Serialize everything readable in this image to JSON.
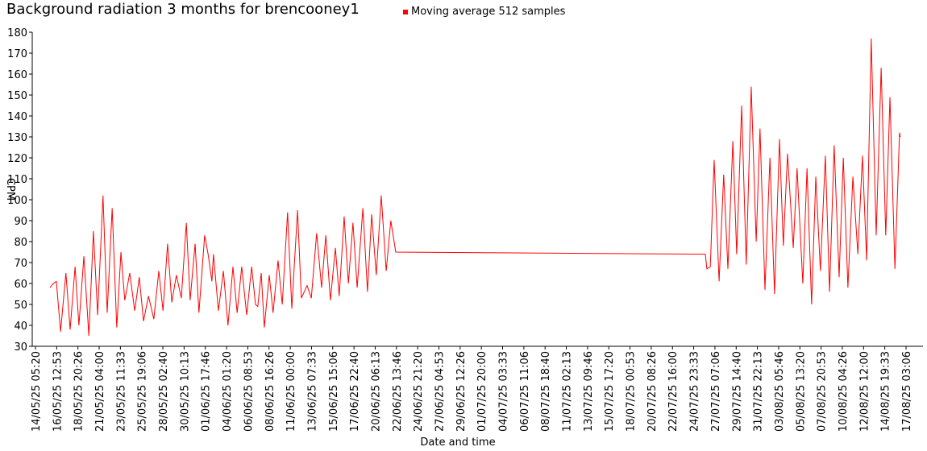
{
  "chart_data": {
    "type": "line",
    "title": "Background radiation 3 months for brencooney1",
    "x_label": "Date and time",
    "y_label": "CPM",
    "legend": "top",
    "x": [
      "15/05/25 19:00",
      "16/05/25 04:00",
      "16/05/25 12:00",
      "16/05/25 23:00",
      "17/05/25 13:00",
      "18/05/25 00:00",
      "18/05/25 13:00",
      "18/05/25 23:00",
      "19/05/25 12:00",
      "20/05/25 01:00",
      "20/05/25 13:00",
      "21/05/25 00:00",
      "21/05/25 14:00",
      "22/05/25 01:00",
      "22/05/25 14:00",
      "23/05/25 02:00",
      "23/05/25 13:00",
      "23/05/25 23:00",
      "24/05/25 12:00",
      "25/05/25 01:00",
      "25/05/25 13:00",
      "26/05/25 00:00",
      "26/05/25 13:00",
      "27/05/25 03:00",
      "27/05/25 16:00",
      "28/05/25 03:00",
      "28/05/25 15:00",
      "29/05/25 02:00",
      "29/05/25 14:00",
      "30/05/25 03:00",
      "30/05/25 16:00",
      "31/05/25 02:00",
      "31/05/25 15:00",
      "01/06/25 01:00",
      "01/06/25 16:00",
      "02/06/25 01:00",
      "02/06/25 11:00",
      "02/06/25 15:00",
      "03/06/25 04:00",
      "03/06/25 17:00",
      "04/06/25 05:00",
      "04/06/25 18:00",
      "05/06/25 05:00",
      "05/06/25 17:00",
      "06/06/25 06:00",
      "06/06/25 19:00",
      "07/06/25 05:00",
      "07/06/25 11:00",
      "07/06/25 20:00",
      "08/06/25 04:00",
      "08/06/25 17:00",
      "09/06/25 03:00",
      "09/06/25 16:00",
      "10/06/25 03:00",
      "10/06/25 17:00",
      "11/06/25 04:00",
      "11/06/25 19:00",
      "12/06/25 05:00",
      "12/06/25 20:00",
      "13/06/25 07:00",
      "13/06/25 21:00",
      "14/06/25 10:00",
      "14/06/25 21:00",
      "15/06/25 09:00",
      "15/06/25 22:00",
      "16/06/25 08:00",
      "16/06/25 21:00",
      "17/06/25 08:00",
      "17/06/25 20:00",
      "18/06/25 07:00",
      "18/06/25 22:00",
      "19/06/25 10:00",
      "19/06/25 21:00",
      "20/06/25 09:00",
      "20/06/25 22:00",
      "21/06/25 11:00",
      "21/06/25 23:00",
      "22/06/25 12:00",
      "26/07/25 06:00",
      "26/07/25 10:00",
      "26/07/25 19:00",
      "27/07/25 05:00",
      "27/07/25 18:00",
      "28/07/25 06:00",
      "28/07/25 17:00",
      "29/07/25 06:00",
      "29/07/25 16:00",
      "30/07/25 05:00",
      "30/07/25 17:00",
      "31/07/25 06:00",
      "31/07/25 19:00",
      "01/08/25 05:00",
      "01/08/25 18:00",
      "02/08/25 07:00",
      "02/08/25 19:00",
      "03/08/25 08:00",
      "03/08/25 18:00",
      "04/08/25 05:00",
      "04/08/25 20:00",
      "05/08/25 06:00",
      "05/08/25 21:00",
      "06/08/25 08:00",
      "06/08/25 20:00",
      "07/08/25 07:00",
      "07/08/25 19:00",
      "08/08/25 08:00",
      "08/08/25 19:00",
      "09/08/25 07:00",
      "09/08/25 20:00",
      "10/08/25 07:00",
      "10/08/25 19:00",
      "11/08/25 08:00",
      "11/08/25 21:00",
      "12/08/25 09:00",
      "12/08/25 20:00",
      "13/08/25 08:00",
      "13/08/25 21:00",
      "14/08/25 10:00",
      "14/08/25 22:00",
      "15/08/25 09:00",
      "15/08/25 22:00",
      "16/08/25 06:00",
      "16/08/25 10:00",
      "16/08/25 12:00"
    ],
    "series": [
      {
        "name": "Moving average 512 samples",
        "color": "#ff0000",
        "values": [
          58,
          60,
          61,
          37,
          65,
          38,
          68,
          40,
          73,
          35,
          85,
          45,
          102,
          46,
          96,
          39,
          75,
          52,
          65,
          47,
          63,
          42,
          54,
          43,
          66,
          47,
          79,
          51,
          64,
          53,
          89,
          52,
          79,
          46,
          83,
          74,
          61,
          74,
          47,
          66,
          40,
          68,
          46,
          68,
          45,
          68,
          50,
          49,
          65,
          39,
          64,
          46,
          71,
          50,
          94,
          48,
          95,
          53,
          59,
          53,
          84,
          58,
          83,
          52,
          77,
          54,
          92,
          60,
          89,
          58,
          96,
          56,
          93,
          64,
          102,
          66,
          90,
          75,
          74,
          67,
          68,
          119,
          61,
          112,
          67,
          128,
          74,
          145,
          69,
          154,
          80,
          134,
          57,
          120,
          55,
          129,
          78,
          122,
          77,
          115,
          60,
          115,
          50,
          111,
          66,
          121,
          56,
          126,
          63,
          120,
          58,
          111,
          74,
          121,
          71,
          177,
          83,
          163,
          83,
          149,
          67,
          110,
          132,
          130
        ]
      }
    ],
    "xlim": [
      "14/05/25 05:20",
      "17/08/25 03:06"
    ],
    "xticks": [
      "14/05/25 05:20",
      "16/05/25 12:53",
      "18/05/25 20:26",
      "21/05/25 04:00",
      "23/05/25 11:33",
      "25/05/25 19:06",
      "28/05/25 02:40",
      "30/05/25 10:13",
      "01/06/25 17:46",
      "04/06/25 01:20",
      "06/06/25 08:53",
      "08/06/25 16:26",
      "11/06/25 00:00",
      "13/06/25 07:33",
      "15/06/25 15:06",
      "17/06/25 22:40",
      "20/06/25 06:13",
      "22/06/25 13:46",
      "24/06/25 21:20",
      "27/06/25 04:53",
      "29/06/25 12:26",
      "01/07/25 20:00",
      "04/07/25 03:33",
      "06/07/25 11:06",
      "08/07/25 18:40",
      "11/07/25 02:13",
      "13/07/25 09:46",
      "15/07/25 17:20",
      "18/07/25 00:53",
      "20/07/25 08:26",
      "22/07/25 16:00",
      "24/07/25 23:33",
      "27/07/25 07:06",
      "29/07/25 14:40",
      "31/07/25 22:13",
      "03/08/25 05:46",
      "05/08/25 13:20",
      "07/08/25 20:53",
      "10/08/25 04:26",
      "12/08/25 12:00",
      "14/08/25 19:33",
      "17/08/25 03:06"
    ],
    "ylim": [
      30,
      180
    ],
    "yticks": [
      30,
      40,
      50,
      60,
      70,
      80,
      90,
      100,
      110,
      120,
      130,
      140,
      150,
      160,
      170,
      180
    ],
    "grid": false
  }
}
